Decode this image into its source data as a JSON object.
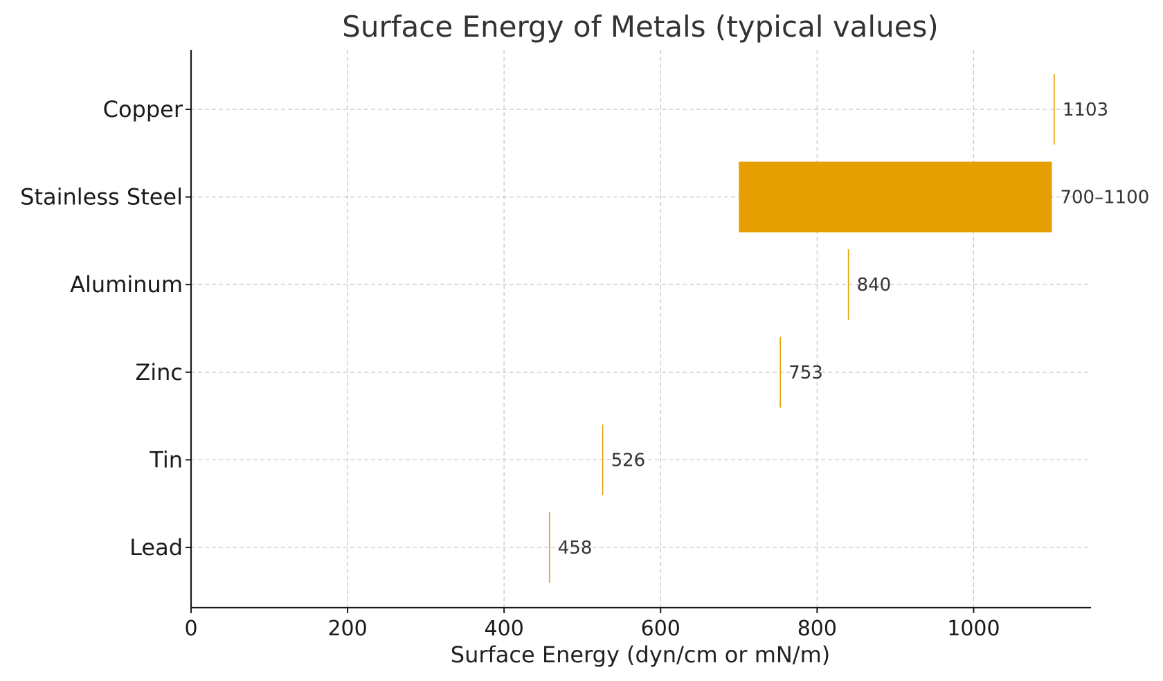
{
  "chart_data": {
    "type": "bar",
    "orientation": "horizontal",
    "title": "Surface Energy of Metals (typical values)",
    "xlabel": "Surface Energy (dyn/cm or mN/m)",
    "ylabel": "",
    "xlim": [
      0,
      1150
    ],
    "xticks": [
      0,
      200,
      400,
      600,
      800,
      1000
    ],
    "grid": true,
    "color": "#E69F00",
    "categories": [
      "Copper",
      "Stainless Steel",
      "Aluminum",
      "Zinc",
      "Tin",
      "Lead"
    ],
    "bars": [
      {
        "category": "Copper",
        "start": 1103,
        "end": 1103,
        "label": "1103"
      },
      {
        "category": "Stainless Steel",
        "start": 700,
        "end": 1100,
        "label": "700–1100"
      },
      {
        "category": "Aluminum",
        "start": 840,
        "end": 840,
        "label": "840"
      },
      {
        "category": "Zinc",
        "start": 753,
        "end": 753,
        "label": "753"
      },
      {
        "category": "Tin",
        "start": 526,
        "end": 526,
        "label": "526"
      },
      {
        "category": "Lead",
        "start": 458,
        "end": 458,
        "label": "458"
      }
    ]
  }
}
